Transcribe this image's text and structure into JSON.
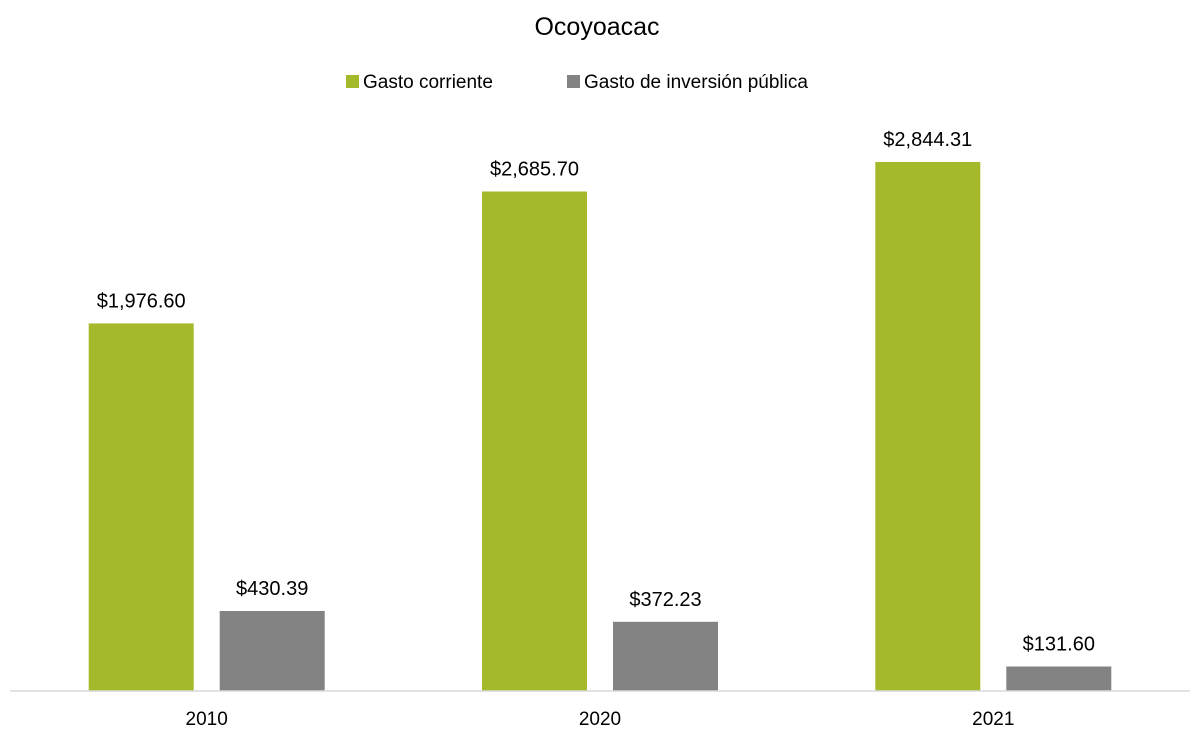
{
  "chart_data": {
    "type": "bar",
    "title": "Ocoyoacac",
    "categories": [
      "2010",
      "2020",
      "2021"
    ],
    "series": [
      {
        "name": "Gasto corriente",
        "color": "#a6b92a",
        "values": [
          1976.6,
          2685.7,
          2844.31
        ],
        "labels": [
          "$1,976.60",
          "$2,685.70",
          "$2,844.31"
        ]
      },
      {
        "name": "Gasto de inversión pública",
        "color": "#838383",
        "values": [
          430.39,
          372.23,
          131.6
        ],
        "labels": [
          "$430.39",
          "$372.23",
          "$131.60"
        ]
      }
    ],
    "xlabel": "",
    "ylabel": "",
    "ylim": [
      0,
      2900
    ],
    "grid": false,
    "legend_position": "top-center",
    "axis_color": "#d9d9d9"
  }
}
